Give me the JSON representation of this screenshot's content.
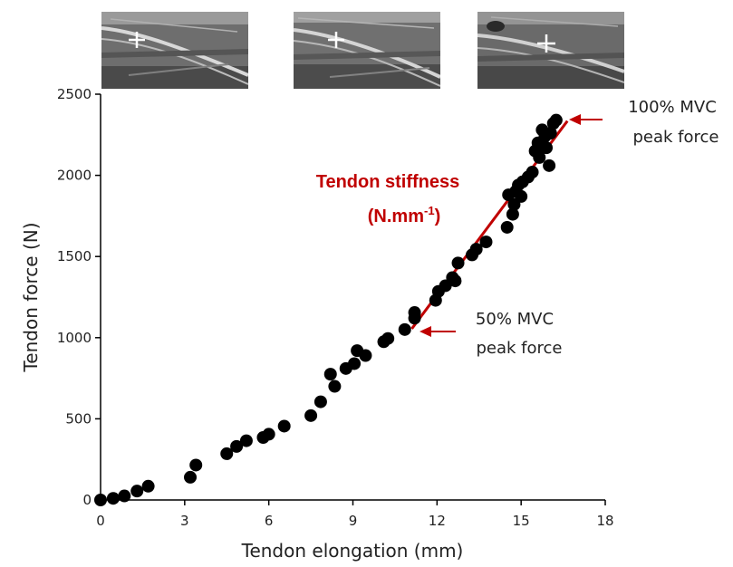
{
  "chart_data": {
    "type": "scatter",
    "xlabel": "Tendon elongation (mm)",
    "ylabel": "Tendon force (N)",
    "xlim": [
      0,
      18
    ],
    "ylim": [
      0,
      2500
    ],
    "xticks": [
      0,
      3,
      6,
      9,
      12,
      15,
      18
    ],
    "yticks": [
      0,
      500,
      1000,
      1500,
      2000,
      2500
    ],
    "grid": false,
    "points": [
      [
        0.0,
        0
      ],
      [
        0.45,
        10
      ],
      [
        0.85,
        25
      ],
      [
        1.3,
        55
      ],
      [
        1.7,
        85
      ],
      [
        3.2,
        140
      ],
      [
        3.4,
        215
      ],
      [
        4.5,
        285
      ],
      [
        4.85,
        330
      ],
      [
        5.2,
        365
      ],
      [
        5.8,
        385
      ],
      [
        6.0,
        405
      ],
      [
        6.55,
        455
      ],
      [
        7.5,
        520
      ],
      [
        7.85,
        605
      ],
      [
        8.2,
        775
      ],
      [
        8.35,
        700
      ],
      [
        8.75,
        810
      ],
      [
        9.05,
        840
      ],
      [
        9.15,
        920
      ],
      [
        9.45,
        890
      ],
      [
        10.1,
        975
      ],
      [
        10.25,
        995
      ],
      [
        10.85,
        1050
      ],
      [
        11.2,
        1120
      ],
      [
        11.2,
        1155
      ],
      [
        11.95,
        1230
      ],
      [
        12.05,
        1285
      ],
      [
        12.3,
        1320
      ],
      [
        12.55,
        1370
      ],
      [
        12.65,
        1350
      ],
      [
        12.75,
        1460
      ],
      [
        13.25,
        1510
      ],
      [
        13.4,
        1545
      ],
      [
        13.75,
        1590
      ],
      [
        14.5,
        1680
      ],
      [
        14.55,
        1880
      ],
      [
        14.7,
        1760
      ],
      [
        14.75,
        1820
      ],
      [
        14.8,
        1900
      ],
      [
        14.9,
        1940
      ],
      [
        15.0,
        1870
      ],
      [
        15.05,
        1960
      ],
      [
        15.25,
        1990
      ],
      [
        15.4,
        2020
      ],
      [
        15.5,
        2150
      ],
      [
        15.6,
        2200
      ],
      [
        15.65,
        2110
      ],
      [
        15.75,
        2280
      ],
      [
        15.85,
        2240
      ],
      [
        15.9,
        2170
      ],
      [
        16.0,
        2060
      ],
      [
        16.05,
        2260
      ],
      [
        16.15,
        2320
      ],
      [
        16.25,
        2340
      ]
    ],
    "fit_line": {
      "x": [
        11.1,
        16.65
      ],
      "y": [
        1055,
        2335
      ],
      "color": "#c00000"
    },
    "annotations": {
      "stiffness_line1": "Tendon stiffness",
      "stiffness_line2_main": "(N.mm",
      "stiffness_line2_sup": "-1",
      "stiffness_line2_end": ")",
      "mvc100_line1": "100% MVC",
      "mvc100_line2": "peak force",
      "mvc50_line1": "50% MVC",
      "mvc50_line2": "peak force"
    },
    "colors": {
      "points": "#000000",
      "accent": "#c00000",
      "axis": "#000000"
    }
  }
}
